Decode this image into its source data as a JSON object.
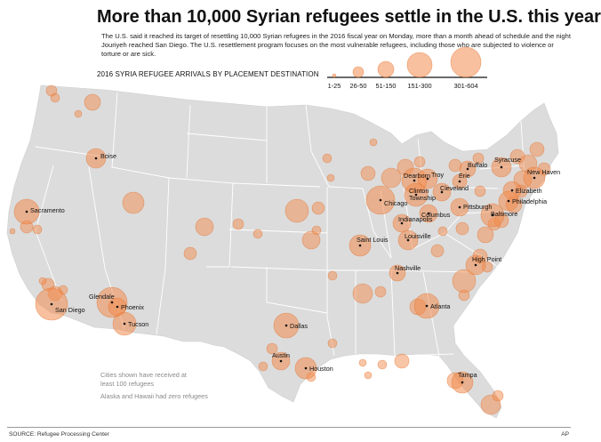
{
  "headline": "More than 10,000 Syrian refugees settle in the U.S. this year",
  "intro": "The U.S. said it reached its target of resettling 10,000 Syrian refugees in the 2016 fiscal year on Monday, more than a month ahead of schedule and the night Jouriyeh reached San Diego. The U.S. resettlement program focuses on the most vulnerable refugees, including those who are subjected to violence or torture or are sick.",
  "legend": {
    "title": "2016 SYRIA REFUGEE ARRIVALS BY PLACEMENT DESTINATION",
    "classes": [
      "1-25",
      "26-50",
      "51-150",
      "151-300",
      "301-604"
    ]
  },
  "notes": {
    "cities_note": "Cities shown have received at least 100 refugees",
    "alaska_hawaii": "Alaska and Hawaii had zero refugees"
  },
  "footer": {
    "source": "SOURCE: Refugee Processing Center",
    "credit": "AP"
  },
  "colors": {
    "land": "#dcdcdc",
    "border": "#ffffff",
    "bubble_fill": "#f28c4e",
    "bubble_stroke": "#e0702b"
  },
  "cities": [
    {
      "name": "Boise"
    },
    {
      "name": "Sacramento"
    },
    {
      "name": "San Diego"
    },
    {
      "name": "Glendale"
    },
    {
      "name": "Phoenix"
    },
    {
      "name": "Tucson"
    },
    {
      "name": "Dallas"
    },
    {
      "name": "Austin"
    },
    {
      "name": "Houston"
    },
    {
      "name": "Chicago"
    },
    {
      "name": "Saint Louis"
    },
    {
      "name": "Indianapolis"
    },
    {
      "name": "Louisville"
    },
    {
      "name": "Nashville"
    },
    {
      "name": "Atlanta"
    },
    {
      "name": "High Point"
    },
    {
      "name": "Columbus"
    },
    {
      "name": "Pittsburgh"
    },
    {
      "name": "Cleveland"
    },
    {
      "name": "Erie"
    },
    {
      "name": "Buffalo"
    },
    {
      "name": "Syracuse"
    },
    {
      "name": "Dearborn"
    },
    {
      "name": "Troy"
    },
    {
      "name": "Clinton Township"
    },
    {
      "name": "New Haven"
    },
    {
      "name": "Elizabeth"
    },
    {
      "name": "Philadelphia"
    },
    {
      "name": "Baltimore"
    },
    {
      "name": "Tampa"
    }
  ]
}
